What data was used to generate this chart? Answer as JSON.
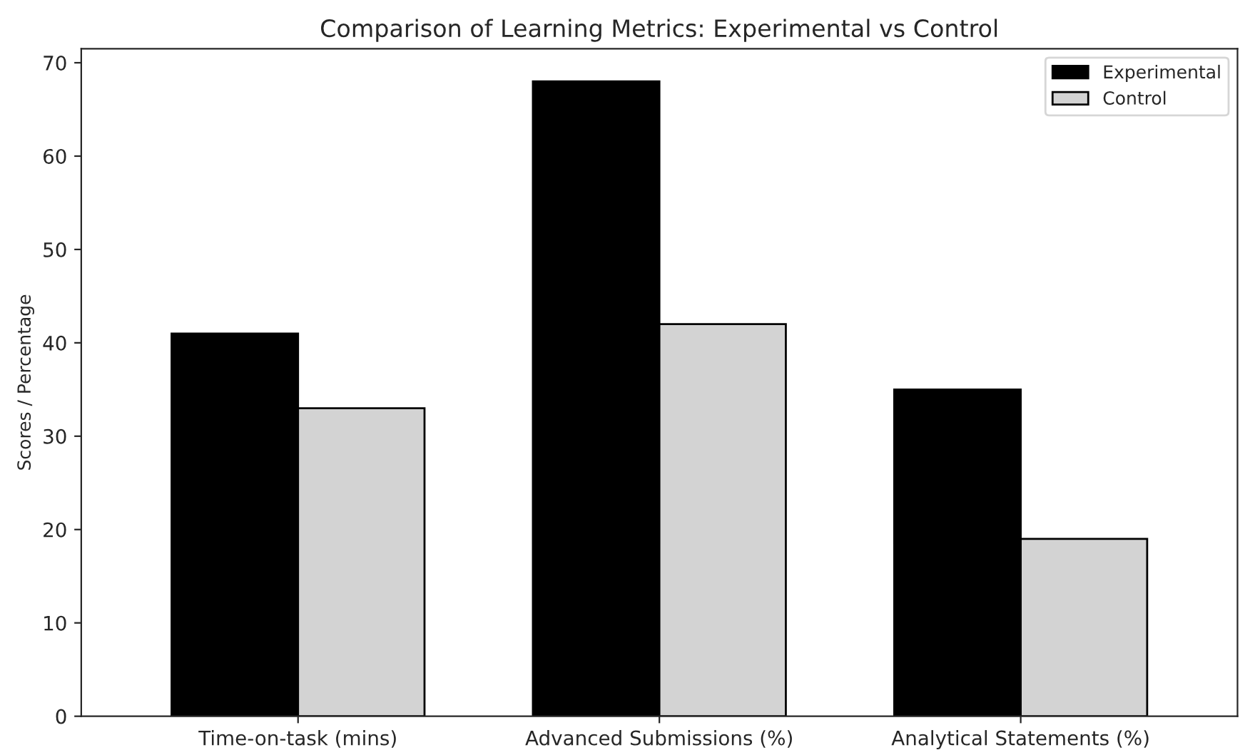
{
  "chart_data": {
    "type": "bar",
    "title": "Comparison of Learning Metrics: Experimental vs Control",
    "ylabel": "Scores / Percentage",
    "categories": [
      "Time-on-task (mins)",
      "Advanced Submissions (%)",
      "Analytical Statements (%)"
    ],
    "series": [
      {
        "name": "Experimental",
        "color": "#000000",
        "values": [
          41,
          68,
          35
        ]
      },
      {
        "name": "Control",
        "color": "#d3d3d3",
        "values": [
          33,
          42,
          19
        ]
      }
    ],
    "ylim": [
      0,
      71.5
    ],
    "yticks": [
      0,
      10,
      20,
      30,
      40,
      50,
      60,
      70
    ],
    "grid": false,
    "legend": "top right"
  }
}
